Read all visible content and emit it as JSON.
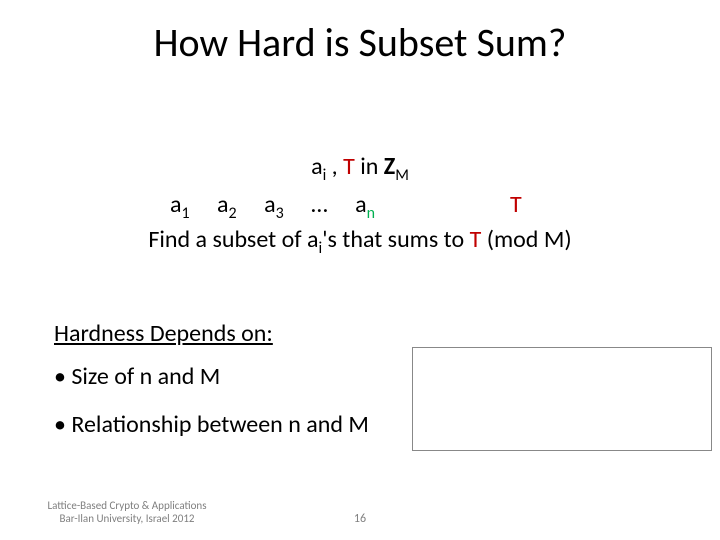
{
  "title": "How Hard is Subset Sum?",
  "notation": {
    "a": "a",
    "i": "i",
    "comma_sep": " , ",
    "T": "T",
    "in_text": "  in  ",
    "Z": "Z",
    "M": "M"
  },
  "sequence": {
    "items": [
      {
        "base": "a",
        "sub": "1"
      },
      {
        "base": "a",
        "sub": "2"
      },
      {
        "base": "a",
        "sub": "3"
      },
      {
        "base": "…",
        "sub": ""
      },
      {
        "base": "a",
        "sub": "n",
        "sub_green": true
      }
    ],
    "T": "T"
  },
  "find_line": {
    "prefix": "Find a subset of ",
    "a": "a",
    "i": "i",
    "mid": "'s that sums to ",
    "T": "T",
    "suffix": " (mod M)"
  },
  "hardness_title": "Hardness Depends on:",
  "bullets": [
    "• Size of n and M",
    "• Relationship between n and M"
  ],
  "footer": {
    "line1": "Lattice-Based Crypto & Applications",
    "line2": "Bar-Ilan University, Israel 2012",
    "page": "16"
  },
  "colors": {
    "green": "#00b050",
    "red": "#c00000",
    "footer_gray": "#7f7f7f",
    "box_border": "#888888",
    "background": "#ffffff",
    "text": "#000000"
  }
}
